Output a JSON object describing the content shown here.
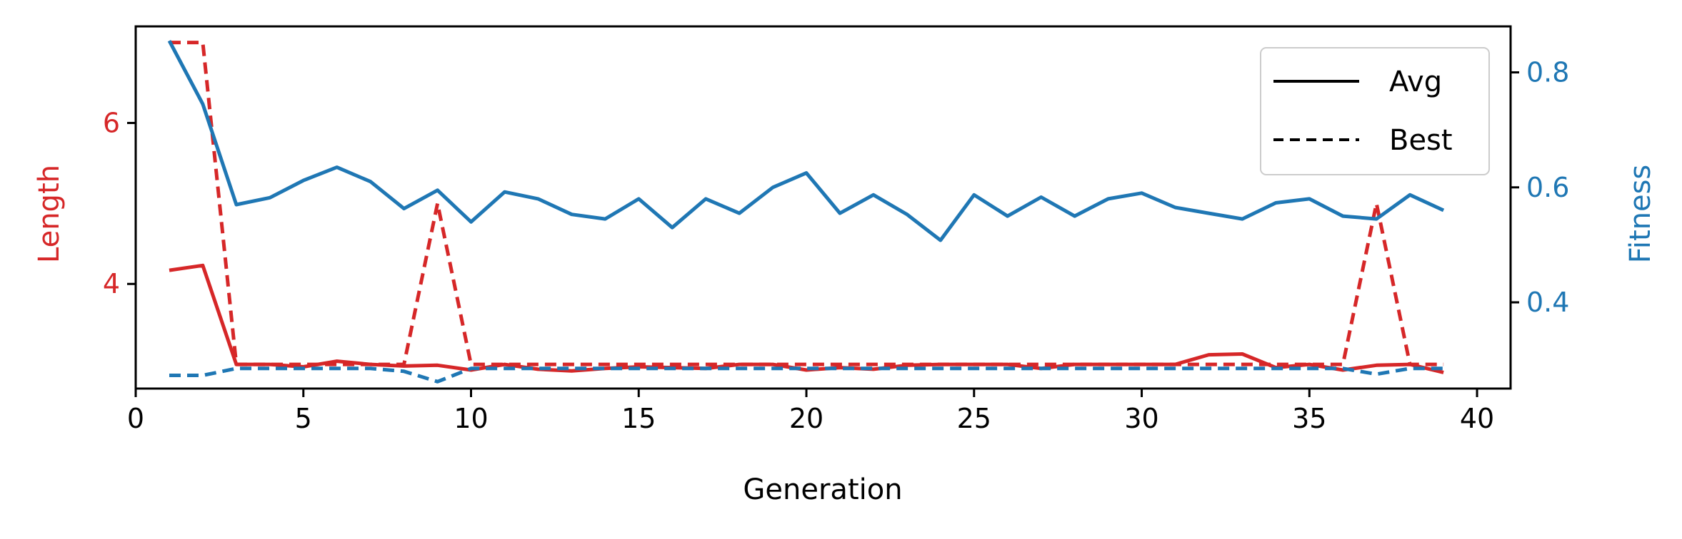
{
  "chart_data": {
    "type": "line",
    "xlabel": "Generation",
    "ylabel_left": "Length",
    "ylabel_right": "Fitness",
    "xlim": [
      0,
      41
    ],
    "ylim_left": [
      2.7,
      7.2
    ],
    "ylim_right": [
      0.25,
      0.88
    ],
    "x_ticks": [
      0,
      5,
      10,
      15,
      20,
      25,
      30,
      35,
      40
    ],
    "y_ticks_left": [
      4,
      6
    ],
    "y_ticks_right": [
      0.4,
      0.6,
      0.8
    ],
    "legend": {
      "position": "top-right",
      "entries": [
        "Avg",
        "Best"
      ]
    },
    "colors": {
      "length": "#d62728",
      "fitness": "#1f77b4"
    },
    "grid": false,
    "x": [
      1,
      2,
      3,
      4,
      5,
      6,
      7,
      8,
      9,
      10,
      11,
      12,
      13,
      14,
      15,
      16,
      17,
      18,
      19,
      20,
      21,
      22,
      23,
      24,
      25,
      26,
      27,
      28,
      29,
      30,
      31,
      32,
      33,
      34,
      35,
      36,
      37,
      38,
      39
    ],
    "series": [
      {
        "name": "Avg",
        "axis": "left",
        "style": "solid",
        "color": "#d62728",
        "values": [
          4.17,
          4.23,
          3.0,
          3.0,
          2.97,
          3.04,
          3.0,
          2.98,
          2.99,
          2.93,
          3.0,
          2.94,
          2.92,
          2.95,
          2.97,
          2.96,
          2.95,
          3.0,
          3.0,
          2.93,
          2.96,
          2.94,
          2.99,
          3.0,
          3.0,
          3.0,
          2.95,
          3.0,
          3.0,
          3.0,
          3.0,
          3.12,
          3.13,
          2.96,
          3.0,
          2.93,
          2.99,
          3.0,
          2.9
        ]
      },
      {
        "name": "Best",
        "axis": "left",
        "style": "dashed",
        "color": "#d62728",
        "values": [
          7.0,
          7.0,
          3.0,
          3.0,
          3.0,
          3.0,
          3.0,
          3.0,
          5.0,
          3.0,
          3.0,
          3.0,
          3.0,
          3.0,
          3.0,
          3.0,
          3.0,
          3.0,
          3.0,
          3.0,
          3.0,
          3.0,
          3.0,
          3.0,
          3.0,
          3.0,
          3.0,
          3.0,
          3.0,
          3.0,
          3.0,
          3.0,
          3.0,
          3.0,
          3.0,
          3.0,
          5.0,
          3.0,
          3.0
        ]
      },
      {
        "name": "Avg",
        "axis": "right",
        "style": "solid",
        "color": "#1f77b4",
        "values": [
          0.855,
          0.745,
          0.57,
          0.582,
          0.612,
          0.635,
          0.61,
          0.563,
          0.595,
          0.54,
          0.592,
          0.58,
          0.553,
          0.545,
          0.58,
          0.53,
          0.58,
          0.555,
          0.6,
          0.625,
          0.555,
          0.587,
          0.553,
          0.508,
          0.587,
          0.55,
          0.583,
          0.55,
          0.58,
          0.59,
          0.565,
          0.555,
          0.545,
          0.573,
          0.58,
          0.55,
          0.545,
          0.587,
          0.56
        ]
      },
      {
        "name": "Best",
        "axis": "right",
        "style": "dashed",
        "color": "#1f77b4",
        "values": [
          0.273,
          0.273,
          0.285,
          0.285,
          0.285,
          0.285,
          0.285,
          0.28,
          0.262,
          0.285,
          0.285,
          0.285,
          0.285,
          0.285,
          0.285,
          0.285,
          0.285,
          0.285,
          0.285,
          0.285,
          0.285,
          0.285,
          0.285,
          0.285,
          0.285,
          0.285,
          0.285,
          0.285,
          0.285,
          0.285,
          0.285,
          0.285,
          0.285,
          0.285,
          0.285,
          0.285,
          0.275,
          0.285,
          0.285
        ]
      }
    ]
  }
}
